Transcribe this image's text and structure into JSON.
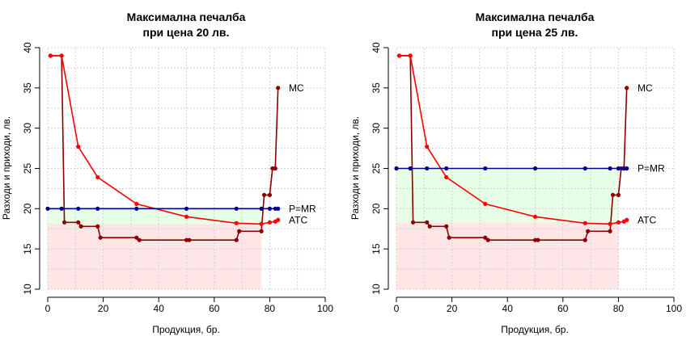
{
  "chart_data": [
    {
      "type": "line",
      "title_line1": "Максимална печалба",
      "title_line2": "при цена 20 лв.",
      "xlabel": "Продукция, бр.",
      "ylabel": "Разходи и приходи, лв.",
      "xlim": [
        0,
        100
      ],
      "ylim": [
        10,
        40
      ],
      "xticks": [
        "0",
        "20",
        "40",
        "60",
        "80",
        "100"
      ],
      "yticks": [
        "10",
        "15",
        "20",
        "25",
        "30",
        "35",
        "40"
      ],
      "grid": true,
      "price": 20,
      "profit_max_quantity": 77,
      "atc_at_optimum": 18.1,
      "series": [
        {
          "name": "MC",
          "color": "#8b0000",
          "step": true,
          "x": [
            1,
            5,
            6,
            11,
            12,
            18,
            19,
            32,
            33,
            50,
            51,
            68,
            69,
            77,
            78,
            80,
            81,
            82,
            83
          ],
          "y": [
            39.0,
            39.0,
            18.3,
            18.3,
            17.8,
            17.8,
            16.4,
            16.4,
            16.1,
            16.1,
            16.1,
            16.1,
            17.2,
            17.2,
            21.7,
            21.7,
            25.0,
            25.0,
            35.0
          ]
        },
        {
          "name": "ATC",
          "color": "#ff0000",
          "step": false,
          "x": [
            1,
            5,
            11,
            18,
            32,
            50,
            68,
            77,
            80,
            82,
            83
          ],
          "y": [
            39.0,
            39.0,
            27.7,
            23.9,
            20.6,
            19.0,
            18.2,
            18.1,
            18.3,
            18.4,
            18.6
          ]
        },
        {
          "name": "P=MR",
          "color": "#00008b",
          "step": false,
          "x": [
            0,
            5,
            11,
            18,
            32,
            50,
            68,
            77,
            80,
            82,
            83
          ],
          "y": [
            20,
            20,
            20,
            20,
            20,
            20,
            20,
            20,
            20,
            20,
            20
          ]
        }
      ]
    },
    {
      "type": "line",
      "title_line1": "Максимална печалба",
      "title_line2": "при цена 25 лв.",
      "xlabel": "Продукция, бр.",
      "ylabel": "Разходи и приходи, лв.",
      "xlim": [
        0,
        100
      ],
      "ylim": [
        10,
        40
      ],
      "xticks": [
        "0",
        "20",
        "40",
        "60",
        "80",
        "100"
      ],
      "yticks": [
        "10",
        "15",
        "20",
        "25",
        "30",
        "35",
        "40"
      ],
      "grid": true,
      "price": 25,
      "profit_max_quantity": 80,
      "atc_at_optimum": 18.3,
      "series": [
        {
          "name": "MC",
          "color": "#8b0000",
          "step": true,
          "x": [
            1,
            5,
            6,
            11,
            12,
            18,
            19,
            32,
            33,
            50,
            51,
            68,
            69,
            77,
            78,
            80,
            81,
            82,
            83
          ],
          "y": [
            39.0,
            39.0,
            18.3,
            18.3,
            17.8,
            17.8,
            16.4,
            16.4,
            16.1,
            16.1,
            16.1,
            16.1,
            17.2,
            17.2,
            21.7,
            21.7,
            25.0,
            25.0,
            35.0
          ]
        },
        {
          "name": "ATC",
          "color": "#ff0000",
          "step": false,
          "x": [
            1,
            5,
            11,
            18,
            32,
            50,
            68,
            77,
            80,
            82,
            83
          ],
          "y": [
            39.0,
            39.0,
            27.7,
            23.9,
            20.6,
            19.0,
            18.2,
            18.1,
            18.3,
            18.4,
            18.6
          ]
        },
        {
          "name": "P=MR",
          "color": "#00008b",
          "step": false,
          "x": [
            0,
            5,
            11,
            18,
            32,
            50,
            68,
            77,
            80,
            82,
            83
          ],
          "y": [
            25,
            25,
            25,
            25,
            25,
            25,
            25,
            25,
            25,
            25,
            25
          ]
        }
      ]
    }
  ],
  "colors": {
    "profit_area": "#e6ffe6",
    "cost_area": "#ffe6e6",
    "grid": "#d3d3d3",
    "axis": "#000000"
  }
}
